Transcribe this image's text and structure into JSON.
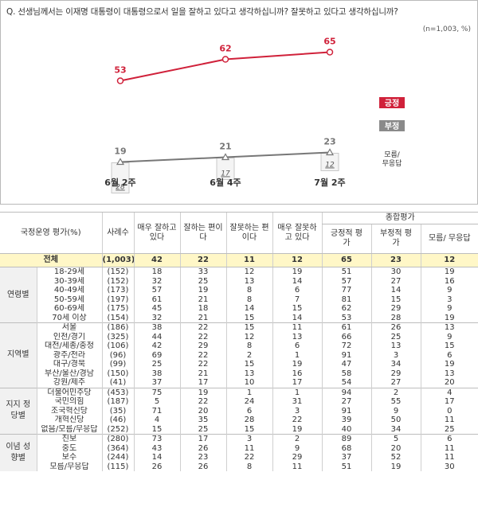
{
  "question": "Q. 선생님께서는 이재명 대통령이 대통령으로서 일을 잘하고 있다고 생각하십니까? 잘못하고 있다고 생각하십니까?",
  "note": "(n=1,003, %)",
  "chart_data": {
    "type": "line",
    "categories": [
      "6월 2주",
      "6월 4주",
      "7월 2주"
    ],
    "series": [
      {
        "name": "긍정",
        "values": [
          53,
          62,
          65
        ],
        "color": "#d0213a"
      },
      {
        "name": "부정",
        "values": [
          19,
          21,
          23
        ],
        "color": "#777777"
      },
      {
        "name": "모름/무응답",
        "values": [
          28,
          17,
          12
        ],
        "color": "#999999"
      }
    ],
    "ylim": [
      0,
      100
    ],
    "legend_position": "right"
  },
  "table": {
    "headers": {
      "group": "국정운영 평가(%)",
      "cases": "사례수",
      "very_good": "매우 잘하고 있다",
      "good": "잘하는 편이다",
      "bad": "잘못하는 편이다",
      "very_bad": "매우 잘못하고 있다",
      "summary": "종합평가",
      "positive": "긍정적 평가",
      "negative": "부정적 평가",
      "dk": "모름/ 무응답"
    },
    "total": {
      "label": "전체",
      "n": "(1,003)",
      "v": [
        "42",
        "22",
        "11",
        "12",
        "65",
        "23",
        "12"
      ]
    },
    "groups": [
      {
        "name": "연령별",
        "rows": [
          {
            "label": "18-29세",
            "n": "(152)",
            "v": [
              "18",
              "33",
              "12",
              "19",
              "51",
              "30",
              "19"
            ]
          },
          {
            "label": "30-39세",
            "n": "(152)",
            "v": [
              "32",
              "25",
              "13",
              "14",
              "57",
              "27",
              "16"
            ]
          },
          {
            "label": "40-49세",
            "n": "(173)",
            "v": [
              "57",
              "19",
              "8",
              "6",
              "77",
              "14",
              "9"
            ]
          },
          {
            "label": "50-59세",
            "n": "(197)",
            "v": [
              "61",
              "21",
              "8",
              "7",
              "81",
              "15",
              "3"
            ]
          },
          {
            "label": "60-69세",
            "n": "(175)",
            "v": [
              "45",
              "18",
              "14",
              "15",
              "62",
              "29",
              "9"
            ]
          },
          {
            "label": "70세 이상",
            "n": "(154)",
            "v": [
              "32",
              "21",
              "15",
              "14",
              "53",
              "28",
              "19"
            ]
          }
        ]
      },
      {
        "name": "지역별",
        "rows": [
          {
            "label": "서울",
            "n": "(186)",
            "v": [
              "38",
              "22",
              "15",
              "11",
              "61",
              "26",
              "13"
            ]
          },
          {
            "label": "인천/경기",
            "n": "(325)",
            "v": [
              "44",
              "22",
              "12",
              "13",
              "66",
              "25",
              "9"
            ]
          },
          {
            "label": "대전/세종/충청",
            "n": "(106)",
            "v": [
              "42",
              "29",
              "8",
              "6",
              "72",
              "13",
              "15"
            ]
          },
          {
            "label": "광주/전라",
            "n": "(96)",
            "v": [
              "69",
              "22",
              "2",
              "1",
              "91",
              "3",
              "6"
            ]
          },
          {
            "label": "대구/경북",
            "n": "(99)",
            "v": [
              "25",
              "22",
              "15",
              "19",
              "47",
              "34",
              "19"
            ]
          },
          {
            "label": "부산/울산/경남",
            "n": "(150)",
            "v": [
              "38",
              "21",
              "13",
              "16",
              "58",
              "29",
              "13"
            ]
          },
          {
            "label": "강원/제주",
            "n": "(41)",
            "v": [
              "37",
              "17",
              "10",
              "17",
              "54",
              "27",
              "20"
            ]
          }
        ]
      },
      {
        "name": "지지 정당별",
        "rows": [
          {
            "label": "더불어민주당",
            "n": "(453)",
            "v": [
              "75",
              "19",
              "1",
              "1",
              "94",
              "2",
              "4"
            ]
          },
          {
            "label": "국민의힘",
            "n": "(187)",
            "v": [
              "5",
              "22",
              "24",
              "31",
              "27",
              "55",
              "17"
            ]
          },
          {
            "label": "조국혁신당",
            "n": "(35)",
            "v": [
              "71",
              "20",
              "6",
              "3",
              "91",
              "9",
              "0"
            ]
          },
          {
            "label": "개혁신당",
            "n": "(46)",
            "v": [
              "4",
              "35",
              "28",
              "22",
              "39",
              "50",
              "11"
            ]
          },
          {
            "label": "없음/모름/무응답",
            "n": "(252)",
            "v": [
              "15",
              "25",
              "15",
              "19",
              "40",
              "34",
              "25"
            ]
          }
        ]
      },
      {
        "name": "이념 성향별",
        "rows": [
          {
            "label": "진보",
            "n": "(280)",
            "v": [
              "73",
              "17",
              "3",
              "2",
              "89",
              "5",
              "6"
            ]
          },
          {
            "label": "중도",
            "n": "(364)",
            "v": [
              "43",
              "26",
              "11",
              "9",
              "68",
              "20",
              "11"
            ]
          },
          {
            "label": "보수",
            "n": "(244)",
            "v": [
              "14",
              "23",
              "22",
              "29",
              "37",
              "52",
              "11"
            ]
          },
          {
            "label": "모름/무응답",
            "n": "(115)",
            "v": [
              "26",
              "26",
              "8",
              "11",
              "51",
              "19",
              "30"
            ]
          }
        ]
      }
    ]
  }
}
